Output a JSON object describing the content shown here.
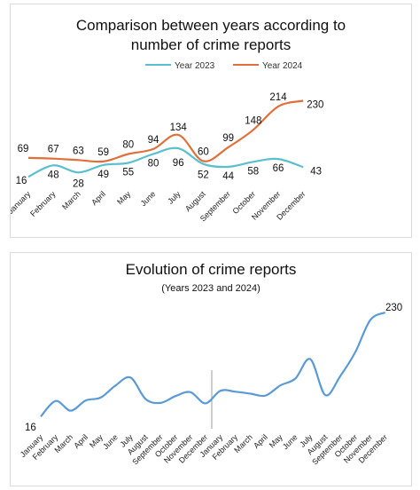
{
  "chart_data": [
    {
      "type": "line",
      "title_line1": "Comparison between years according to",
      "title_line2": "number of crime reports",
      "categories": [
        "January",
        "February",
        "March",
        "April",
        "May",
        "June",
        "July",
        "August",
        "September",
        "October",
        "November",
        "December"
      ],
      "series": [
        {
          "name": "Year 2023",
          "color": "#5bbfcf",
          "values": [
            16,
            48,
            28,
            49,
            55,
            80,
            96,
            52,
            44,
            58,
            66,
            43
          ]
        },
        {
          "name": "Year 2024",
          "color": "#e0703a",
          "values": [
            69,
            67,
            63,
            59,
            80,
            94,
            134,
            60,
            99,
            148,
            214,
            230
          ]
        }
      ],
      "legend_position": "top",
      "grid": false
    },
    {
      "type": "line",
      "title": "Evolution of crime reports",
      "subtitle": "(Years 2023 and 2024)",
      "categories": [
        "January",
        "February",
        "March",
        "April",
        "May",
        "June",
        "July",
        "August",
        "September",
        "October",
        "November",
        "December",
        "January",
        "February",
        "March",
        "April",
        "May",
        "June",
        "July",
        "August",
        "September",
        "October",
        "November",
        "December"
      ],
      "series": [
        {
          "color": "#5b9bd5",
          "values": [
            16,
            48,
            28,
            49,
            55,
            80,
            96,
            52,
            44,
            58,
            66,
            43,
            69,
            67,
            63,
            59,
            80,
            94,
            134,
            60,
            99,
            148,
            214,
            230
          ]
        }
      ],
      "point_labels": {
        "first": "16",
        "last": "230"
      },
      "grid": false
    }
  ]
}
